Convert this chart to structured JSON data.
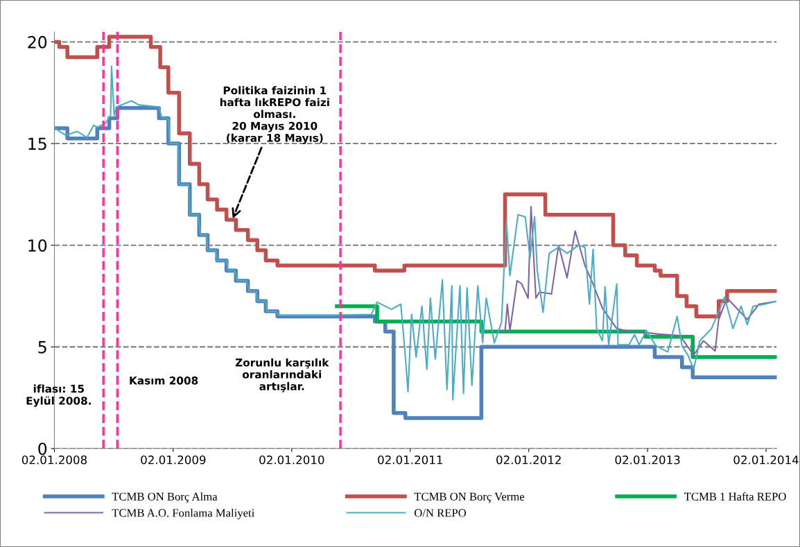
{
  "chart_data": {
    "type": "line",
    "ylim": [
      0,
      20.5
    ],
    "yticks": [
      0,
      5,
      10,
      15,
      20
    ],
    "xlim": [
      "2008-01-02",
      "2014-02-04"
    ],
    "xticks": [
      {
        "value": "2008-01-02",
        "label": "02.01.2008"
      },
      {
        "value": "2009-01-02",
        "label": "02.01.2009"
      },
      {
        "value": "2010-01-02",
        "label": "02.01.2010"
      },
      {
        "value": "2011-01-02",
        "label": "02.01.2011"
      },
      {
        "value": "2012-01-02",
        "label": "02.01.2012"
      },
      {
        "value": "2013-01-02",
        "label": "02.01.2013"
      },
      {
        "value": "2014-01-02",
        "label": "02.01.2014"
      }
    ],
    "grid": "y",
    "legend": "bottom",
    "line_style": "solid",
    "series": [
      {
        "name": "TCMB ON Borç Alma",
        "type": "step",
        "color": "#4f81bd",
        "x": [
          "2008-01-02",
          "2008-02-11",
          "2008-05-13",
          "2008-06-19",
          "2008-07-14",
          "2008-11-19",
          "2008-12-18",
          "2009-01-20",
          "2009-02-22",
          "2009-03-23",
          "2009-04-18",
          "2009-05-17",
          "2009-06-15",
          "2009-07-14",
          "2009-08-20",
          "2009-09-18",
          "2009-10-14",
          "2009-11-19",
          "2010-09-15",
          "2010-10-17",
          "2010-11-12",
          "2010-12-18",
          "2011-08-09",
          "2013-01-24",
          "2013-04-18",
          "2013-05-21",
          "2014-02-04"
        ],
        "values": [
          15.75,
          15.25,
          15.75,
          16.25,
          16.75,
          16.25,
          15,
          13,
          11.5,
          10.5,
          9.75,
          9.25,
          8.75,
          8.25,
          7.75,
          7.25,
          6.75,
          6.5,
          6.25,
          5.75,
          1.75,
          1.5,
          5,
          4.5,
          4,
          3.5,
          3.5
        ]
      },
      {
        "name": "TCMB ON Borç Verme",
        "type": "step",
        "color": "#c0504d",
        "x": [
          "2008-01-02",
          "2008-01-17",
          "2008-02-11",
          "2008-05-13",
          "2008-06-19",
          "2008-10-25",
          "2008-11-23",
          "2008-12-18",
          "2009-01-20",
          "2009-02-22",
          "2009-03-23",
          "2009-04-18",
          "2009-05-17",
          "2009-06-15",
          "2009-07-14",
          "2009-08-20",
          "2009-09-18",
          "2009-10-14",
          "2009-11-19",
          "2010-09-15",
          "2010-12-15",
          "2011-10-21",
          "2012-02-22",
          "2012-09-18",
          "2012-10-25",
          "2012-11-30",
          "2013-01-24",
          "2013-02-11",
          "2013-04-03",
          "2013-05-02",
          "2013-06-01",
          "2013-08-09",
          "2013-09-04",
          "2014-02-04"
        ],
        "values": [
          20,
          19.75,
          19.25,
          19.75,
          20.25,
          19.75,
          18.75,
          17.5,
          15.5,
          14,
          13,
          12.25,
          11.75,
          11.25,
          10.75,
          10.25,
          9.75,
          9.25,
          9,
          8.75,
          9,
          12.5,
          11.5,
          10,
          9.5,
          9,
          8.75,
          8.5,
          7.5,
          7,
          6.5,
          7.25,
          7.75,
          7.75
        ]
      },
      {
        "name": "TCMB 1 Hafta REPO",
        "type": "step",
        "color": "#00b050",
        "x": [
          "2010-05-21",
          "2010-09-22",
          "2011-08-09",
          "2012-12-26",
          "2013-05-21",
          "2014-02-04"
        ],
        "values": [
          7,
          6.25,
          5.75,
          5.5,
          4.5,
          4.5
        ]
      },
      {
        "name": "TCMB A.O. Fonlama Maliyeti",
        "color": "#8064a2",
        "x": [
          "2011-10-03",
          "2011-10-21",
          "2011-10-28",
          "2011-11-05",
          "2011-11-27",
          "2011-12-11",
          "2011-12-31",
          "2012-01-09",
          "2012-01-24",
          "2012-02-04",
          "2012-03-12",
          "2012-04-03",
          "2012-04-29",
          "2012-05-24",
          "2012-06-23",
          "2012-07-18",
          "2012-08-16",
          "2012-09-29",
          "2012-11-05",
          "2012-12-29",
          "2013-02-04",
          "2013-04-11",
          "2013-05-24",
          "2013-06-23",
          "2013-07-29",
          "2013-08-09",
          "2013-09-04",
          "2013-11-05",
          "2013-12-11",
          "2014-01-31"
        ],
        "values": [
          5.8,
          5.75,
          7.1,
          5.8,
          8.26,
          8.1,
          7.4,
          11.9,
          7.4,
          7.7,
          7.6,
          10.0,
          8.4,
          10.7,
          9.0,
          8.1,
          6.9,
          5.9,
          5.77,
          5.7,
          5.63,
          5.56,
          4.6,
          5.3,
          4.8,
          6.35,
          7.4,
          6.35,
          7.1,
          7.23
        ]
      },
      {
        "name": "O/N REPO",
        "color": "#4bacc6",
        "x": [
          "2008-01-02",
          "2008-01-17",
          "2008-02-07",
          "2008-03-12",
          "2008-04-11",
          "2008-05-02",
          "2008-05-13",
          "2008-06-08",
          "2008-06-23",
          "2008-06-26",
          "2008-07-04",
          "2008-07-11",
          "2008-08-27",
          "2008-09-18",
          "2008-11-19",
          "2008-11-27",
          "2008-12-18",
          "2008-12-22",
          "2009-01-17",
          "2009-01-20",
          "2009-02-18",
          "2009-02-22",
          "2009-03-20",
          "2009-03-27",
          "2009-04-14",
          "2009-04-18",
          "2009-05-13",
          "2009-05-17",
          "2009-06-15",
          "2009-06-19",
          "2009-07-11",
          "2009-07-18",
          "2009-08-16",
          "2009-08-24",
          "2009-09-15",
          "2009-09-18",
          "2009-10-14",
          "2009-10-17",
          "2009-11-16",
          "2009-11-23",
          "2010-05-10",
          "2010-09-04",
          "2010-09-22",
          "2010-11-05",
          "2010-12-04",
          "2010-12-18",
          "2010-12-26",
          "2011-01-06",
          "2011-01-20",
          "2011-02-07",
          "2011-02-22",
          "2011-03-05",
          "2011-03-20",
          "2011-04-11",
          "2011-04-25",
          "2011-05-10",
          "2011-05-13",
          "2011-06-04",
          "2011-06-15",
          "2011-06-26",
          "2011-07-11",
          "2011-07-29",
          "2011-08-13",
          "2011-08-24",
          "2011-09-18",
          "2011-10-10",
          "2011-10-25",
          "2011-11-05",
          "2011-11-30",
          "2011-12-22",
          "2012-01-06",
          "2012-01-20",
          "2012-01-28",
          "2012-02-15",
          "2012-03-05",
          "2012-04-03",
          "2012-04-29",
          "2012-06-04",
          "2012-06-23",
          "2012-07-07",
          "2012-07-18",
          "2012-07-29",
          "2012-08-16",
          "2012-08-24",
          "2012-09-04",
          "2012-09-29",
          "2012-10-03",
          "2012-11-05",
          "2012-11-23",
          "2012-12-07",
          "2012-12-29",
          "2013-01-28",
          "2013-03-05",
          "2013-04-03",
          "2013-04-18",
          "2013-05-06",
          "2013-05-24",
          "2013-06-12",
          "2013-07-18",
          "2013-08-16",
          "2013-08-27",
          "2013-09-22",
          "2013-10-17",
          "2013-11-05",
          "2013-11-23",
          "2013-12-29",
          "2014-01-31"
        ],
        "values": [
          15.8,
          15.6,
          15.4,
          15.6,
          15.3,
          15.9,
          15.8,
          16.0,
          16.4,
          18.8,
          16.4,
          16.8,
          17.1,
          16.9,
          16.8,
          16.3,
          16.2,
          15.0,
          15.0,
          13.0,
          13.0,
          11.5,
          11.5,
          10.5,
          10.5,
          9.75,
          9.75,
          9.25,
          9.25,
          8.75,
          8.75,
          8.25,
          8.25,
          7.75,
          7.75,
          7.25,
          7.25,
          6.75,
          6.75,
          6.55,
          6.55,
          6.6,
          7.2,
          6.85,
          7.1,
          4.5,
          2.8,
          6.6,
          4.5,
          7.0,
          3.9,
          7.4,
          4.4,
          8.3,
          2.9,
          8.0,
          2.4,
          8.0,
          2.7,
          7.9,
          3.1,
          8.0,
          5.2,
          7.4,
          5.2,
          6.2,
          11.2,
          8.5,
          11.5,
          11.4,
          9.4,
          11.4,
          8.8,
          6.7,
          9.6,
          9.9,
          9.6,
          10.0,
          9.9,
          7.1,
          9.8,
          5.9,
          5.3,
          7.95,
          5.1,
          8.1,
          5.1,
          5.1,
          5.6,
          5.1,
          5.8,
          5.05,
          4.75,
          6.5,
          5.05,
          4.6,
          3.9,
          5.3,
          5.9,
          7.0,
          7.45,
          5.9,
          7.0,
          6.1,
          7.0,
          7.1,
          7.23
        ]
      }
    ],
    "ref_lines": [
      {
        "axis": "x",
        "value": "2008-06-01",
        "label": "iflası: 15\nEylül 2008.",
        "color": "#ff3399",
        "line_style": "dashed"
      },
      {
        "axis": "x",
        "value": "2008-07-14",
        "label": "Kasım 2008",
        "color": "#ff3399",
        "line_style": "dashed"
      },
      {
        "axis": "x",
        "value": "2010-06-01",
        "label": "Zorunlu karşılık\noranlarındaki\nartışlar.",
        "color": "#ff3399",
        "line_style": "dashed"
      }
    ],
    "annotations": [
      {
        "text": "Politika faizinin 1\nhafta lıkREPO faizi\nolması.\n20 Mayıs 2010\n(karar 18 Mayıs)",
        "x": "2009-07-04",
        "y": 11.3
      }
    ]
  }
}
